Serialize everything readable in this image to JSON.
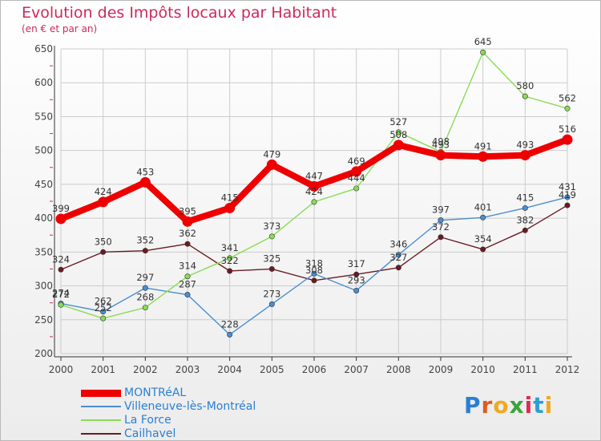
{
  "header": {
    "title": "Evolution des Impôts locaux par Habitant",
    "subtitle": "(en € et par an)"
  },
  "colors": {
    "title": "#cc2a5a",
    "grid": "#cccccc",
    "axis": "#555555"
  },
  "chart_data": {
    "type": "line",
    "title": "Evolution des Impôts locaux par Habitant",
    "subtitle": "(en € et par an)",
    "x": [
      "2000",
      "2001",
      "2002",
      "2003",
      "2004",
      "2005",
      "2006",
      "2007",
      "2008",
      "2009",
      "2010",
      "2011",
      "2012"
    ],
    "ylim": [
      200,
      650
    ],
    "yticks": [
      200,
      250,
      300,
      350,
      400,
      450,
      500,
      550,
      600,
      650
    ],
    "grid": true,
    "series": [
      {
        "name": "MONTRéAL",
        "color": "#ee0000",
        "values": [
          399,
          424,
          453,
          395,
          415,
          479,
          447,
          469,
          508,
          493,
          491,
          493,
          516
        ],
        "labels": [
          "399",
          "424",
          "453",
          "395",
          "415",
          "479",
          "447",
          "469",
          "508",
          "493",
          "491",
          "493",
          "516"
        ]
      },
      {
        "name": "Villeneuve-lès-Montréal",
        "color": "#4a8ed0",
        "values": [
          274,
          262,
          297,
          287,
          228,
          273,
          318,
          293,
          346,
          397,
          401,
          415,
          431
        ],
        "labels": [
          "274",
          "262",
          "297",
          "287",
          "228",
          "273",
          "318",
          "293",
          "346",
          "397",
          "401",
          "415",
          "431"
        ]
      },
      {
        "name": "La Force",
        "color": "#88dd55",
        "values": [
          272,
          252,
          268,
          314,
          341,
          373,
          424,
          444,
          527,
          498,
          645,
          580,
          562
        ],
        "labels": [
          "272",
          "252",
          "268",
          "314",
          "341",
          "373",
          "424",
          "444",
          "527",
          "498",
          "645",
          "580",
          "562"
        ]
      },
      {
        "name": "Cailhavel",
        "color": "#6b1a22",
        "values": [
          324,
          350,
          352,
          362,
          322,
          325,
          308,
          317,
          327,
          372,
          354,
          382,
          419
        ],
        "labels": [
          "324",
          "350",
          "352",
          "362",
          "322",
          "325",
          "308",
          "317",
          "327",
          "372",
          "354",
          "382",
          "419"
        ]
      }
    ]
  },
  "logo": {
    "letters": [
      "P",
      "r",
      "o",
      "x",
      "i",
      "t",
      "i"
    ],
    "colors": [
      "#2a7fd4",
      "#e05a20",
      "#f2a81e",
      "#3aa53a",
      "#e02a55",
      "#2a9fd4",
      "#f2a81e"
    ]
  }
}
